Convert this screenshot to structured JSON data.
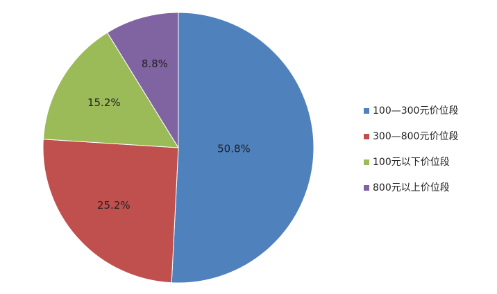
{
  "chart_data": {
    "type": "pie",
    "categories": [
      "100—300元价位段",
      "300—800元价位段",
      "100元以下价位段",
      "800元以上价位段"
    ],
    "values": [
      50.8,
      25.2,
      15.2,
      8.8
    ],
    "value_labels": [
      "50.8%",
      "25.2%",
      "15.2%",
      "8.8%"
    ],
    "colors": [
      "#4f81bd",
      "#c0504d",
      "#9bbb59",
      "#8064a2"
    ],
    "legend": "right"
  }
}
